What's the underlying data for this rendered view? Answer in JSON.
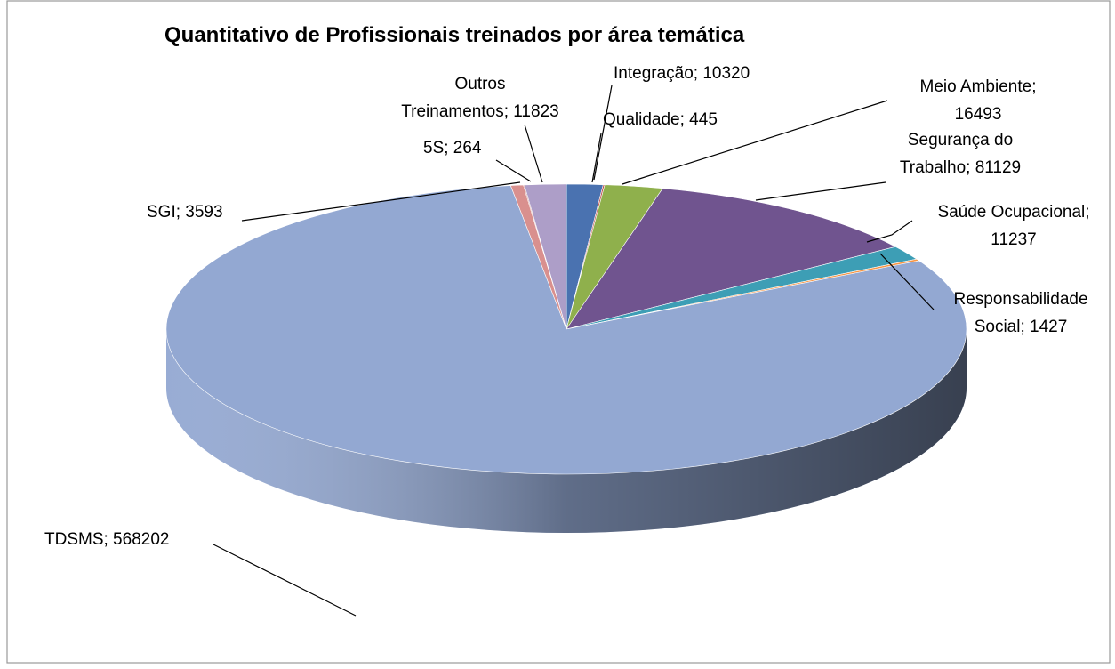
{
  "chart_data": {
    "type": "pie3d",
    "title": "Quantitativo de Profissionais treinados por área temática",
    "values": [
      10320,
      445,
      16493,
      81129,
      11237,
      1427,
      568202,
      3593,
      264,
      11823
    ],
    "value_labels": [
      "Integração; 10320",
      "Qualidade; 445",
      "Meio Ambiente; 16493",
      "Segurança do Trabalho; 81129",
      "Saúde Ocupacional; 11237",
      "Responsabilidade Social; 1427",
      "TDSMS; 568202",
      "SGI; 3593",
      "5S; 264",
      "Outros Treinamentos; 11823"
    ],
    "colors": [
      "#4a72b0",
      "#c0504d",
      "#8fb04c",
      "#70548f",
      "#3d9eb5",
      "#f79646",
      "#93a8d2",
      "#d9908e",
      "#b8574f",
      "#ad9ec8"
    ]
  }
}
